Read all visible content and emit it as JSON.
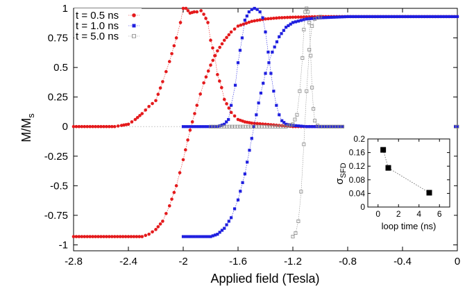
{
  "chart_data": [
    {
      "type": "scatter",
      "title": "",
      "xlabel": "Applied field (Tesla)",
      "ylabel": {
        "base": "M/M",
        "sub": "s"
      },
      "xlim": [
        -2.8,
        0
      ],
      "ylim": [
        -1.05,
        1.0
      ],
      "xticks": [
        -2.8,
        -2.4,
        -2,
        -1.6,
        -1.2,
        -0.8,
        -0.4,
        0
      ],
      "xtick_labels": [
        "-2.8",
        "-2.4",
        "-2",
        "-1.6",
        "-1.2",
        "-0.8",
        "-0.4",
        "0"
      ],
      "yticks": [
        -1,
        -0.75,
        -0.5,
        -0.25,
        0,
        0.25,
        0.5,
        0.75,
        1
      ],
      "ytick_labels": [
        "-1",
        "-0.75",
        "-0.5",
        "-0.25",
        "0",
        "0.25",
        "0.5",
        "0.75",
        "1"
      ],
      "grid": false,
      "legend_position": "top-left",
      "series": [
        {
          "name": "t = 0.5 ns",
          "color": "#e41a1c",
          "marker": "circle",
          "magnetization_curve": {
            "x": [
              -2.8,
              -2.3,
              -2.25,
              -2.2,
              -2.15,
              -2.1,
              -2.05,
              -2.0,
              -1.95,
              -1.9,
              -1.85,
              -1.8,
              -1.75,
              -1.7,
              -1.65,
              -1.6,
              -1.5,
              -1.4,
              -1.3,
              -1.2,
              -1.0,
              -0.8,
              0
            ],
            "y": [
              -0.93,
              -0.93,
              -0.91,
              -0.87,
              -0.8,
              -0.67,
              -0.5,
              -0.28,
              -0.03,
              0.18,
              0.37,
              0.52,
              0.64,
              0.73,
              0.8,
              0.85,
              0.89,
              0.91,
              0.92,
              0.925,
              0.93,
              0.93,
              0.93
            ]
          },
          "switching_distribution": {
            "x": [
              -2.8,
              -2.5,
              -2.45,
              -2.4,
              -2.35,
              -2.3,
              -2.25,
              -2.2,
              -2.15,
              -2.1,
              -2.05,
              -2.02,
              -2.0,
              -1.98,
              -1.95,
              -1.92,
              -1.9,
              -1.87,
              -1.85,
              -1.82,
              -1.8,
              -1.77,
              -1.75,
              -1.72,
              -1.7,
              -1.65,
              -1.6,
              -1.55,
              -1.5,
              -1.4,
              -1.3,
              -1.2,
              -1.0,
              0
            ],
            "y": [
              0,
              0,
              0.01,
              0.02,
              0.06,
              0.11,
              0.17,
              0.22,
              0.38,
              0.55,
              0.75,
              0.88,
              1.0,
              1.0,
              0.96,
              0.97,
              0.97,
              0.98,
              0.95,
              0.88,
              0.73,
              0.6,
              0.44,
              0.33,
              0.23,
              0.12,
              0.06,
              0.04,
              0.03,
              0.02,
              0.01,
              0,
              0,
              0
            ]
          }
        },
        {
          "name": "t = 1.0 ns",
          "color": "#1f1fdf",
          "marker": "square",
          "magnetization_curve": {
            "x": [
              -2.0,
              -1.8,
              -1.75,
              -1.7,
              -1.65,
              -1.6,
              -1.55,
              -1.5,
              -1.45,
              -1.4,
              -1.35,
              -1.3,
              -1.25,
              -1.2,
              -1.1,
              -1.0,
              -0.9,
              -0.8,
              0
            ],
            "y": [
              -0.93,
              -0.93,
              -0.91,
              -0.86,
              -0.77,
              -0.62,
              -0.4,
              -0.1,
              0.2,
              0.45,
              0.63,
              0.76,
              0.84,
              0.88,
              0.91,
              0.92,
              0.925,
              0.93,
              0.93
            ]
          },
          "switching_distribution": {
            "x": [
              -2.0,
              -1.75,
              -1.7,
              -1.67,
              -1.65,
              -1.62,
              -1.6,
              -1.57,
              -1.55,
              -1.52,
              -1.5,
              -1.48,
              -1.46,
              -1.44,
              -1.42,
              -1.4,
              -1.38,
              -1.36,
              -1.34,
              -1.32,
              -1.3,
              -1.28,
              -1.25,
              -1.2,
              -1.1,
              -1.0,
              0
            ],
            "y": [
              0,
              0,
              0.02,
              0.06,
              0.18,
              0.35,
              0.54,
              0.75,
              0.9,
              0.97,
              0.99,
              1.0,
              0.99,
              0.97,
              0.92,
              0.8,
              0.63,
              0.45,
              0.3,
              0.18,
              0.1,
              0.05,
              0.02,
              0.01,
              0,
              0,
              0
            ]
          }
        },
        {
          "name": "t = 5.0 ns",
          "color": "#888888",
          "marker": "open-square",
          "magnetization_curve": {
            "x": [
              -1.2,
              -1.18,
              -1.16,
              -1.14,
              -1.12,
              -1.1,
              -1.08,
              -1.06,
              -1.04,
              -1.0
            ],
            "y": [
              -0.93,
              -0.9,
              -0.8,
              -0.55,
              -0.15,
              0.3,
              0.65,
              0.85,
              0.91,
              0.93
            ]
          },
          "switching_distribution": {
            "x": [
              -1.8,
              -1.25,
              -1.2,
              -1.17,
              -1.15,
              -1.13,
              -1.12,
              -1.11,
              -1.1,
              -1.09,
              -1.08,
              -1.07,
              -1.06,
              -1.05,
              -1.04,
              -1.02,
              -1.0,
              -0.9,
              0
            ],
            "y": [
              0,
              0,
              0.02,
              0.1,
              0.3,
              0.58,
              0.82,
              0.97,
              1.0,
              0.97,
              0.88,
              0.6,
              0.33,
              0.15,
              0.05,
              0.01,
              0,
              0,
              0
            ]
          }
        }
      ]
    },
    {
      "type": "line",
      "title": "",
      "xlabel": "loop time (ns)",
      "ylabel": {
        "base": "σ",
        "sub": "SFD"
      },
      "xlim": [
        -1,
        7
      ],
      "ylim": [
        0,
        0.2
      ],
      "xticks": [
        0,
        2,
        4,
        6
      ],
      "xtick_labels": [
        "0",
        "2",
        "4",
        "6"
      ],
      "yticks": [
        0,
        0.04,
        0.08,
        0.12,
        0.16,
        0.2
      ],
      "ytick_labels": [
        "0",
        "0.04",
        "0.08",
        "0.12",
        "0.16",
        "0.2"
      ],
      "grid": false,
      "series": [
        {
          "x": [
            0.5,
            1.0,
            5.0
          ],
          "y": [
            0.168,
            0.115,
            0.042
          ],
          "color": "#000000",
          "marker": "square"
        }
      ]
    }
  ]
}
